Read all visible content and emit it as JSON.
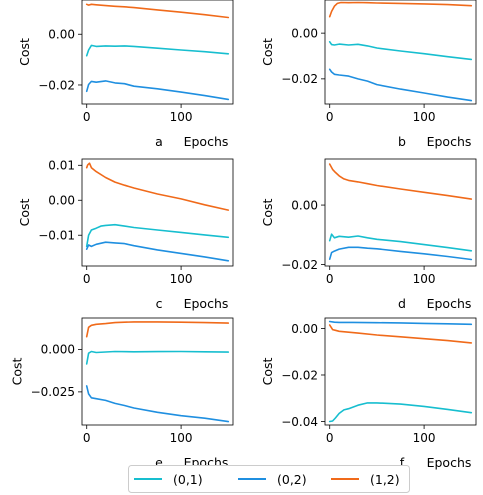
{
  "colors": {
    "s01": "#17becf",
    "s02": "#1f8fe0",
    "s12": "#f06a1a"
  },
  "legend": {
    "placement": "bottom-center",
    "entries": [
      "(0,1)",
      "(0,2)",
      "(1,2)"
    ]
  },
  "chart_data": [
    {
      "type": "line",
      "panel_label": "a",
      "xlabel": "Epochs",
      "ylabel": "Cost",
      "xlim": [
        -5,
        155
      ],
      "ylim": [
        -0.0275,
        0.0135
      ],
      "xticks": [
        0,
        100
      ],
      "yticks": [
        -0.02,
        0.0
      ],
      "ytick_labels": [
        "−0.02",
        "0.00"
      ],
      "series": [
        {
          "name": "(0,1)",
          "color_key": "s01",
          "x": [
            0,
            2,
            5,
            10,
            20,
            30,
            40,
            50,
            75,
            100,
            125,
            150
          ],
          "y": [
            -0.0085,
            -0.0062,
            -0.0044,
            -0.0048,
            -0.0046,
            -0.0047,
            -0.0046,
            -0.0048,
            -0.0055,
            -0.0062,
            -0.0069,
            -0.0077
          ]
        },
        {
          "name": "(0,2)",
          "color_key": "s02",
          "x": [
            0,
            2,
            5,
            10,
            20,
            30,
            40,
            50,
            75,
            100,
            125,
            150
          ],
          "y": [
            -0.0225,
            -0.0198,
            -0.0186,
            -0.0189,
            -0.0184,
            -0.0192,
            -0.0195,
            -0.0205,
            -0.0215,
            -0.0228,
            -0.0242,
            -0.0257
          ]
        },
        {
          "name": "(1,2)",
          "color_key": "s12",
          "x": [
            0,
            2,
            5,
            10,
            20,
            30,
            40,
            50,
            75,
            100,
            125,
            150
          ],
          "y": [
            0.0118,
            0.0115,
            0.0118,
            0.0116,
            0.0113,
            0.011,
            0.0108,
            0.0105,
            0.0096,
            0.0087,
            0.0077,
            0.0066
          ]
        }
      ]
    },
    {
      "type": "line",
      "panel_label": "b",
      "xlabel": "Epochs",
      "ylabel": "Cost",
      "xlim": [
        -5,
        155
      ],
      "ylim": [
        -0.031,
        0.0145
      ],
      "xticks": [
        0,
        100
      ],
      "yticks": [
        -0.02,
        0.0
      ],
      "ytick_labels": [
        "−0.02",
        "0.00"
      ],
      "series": [
        {
          "name": "(0,1)",
          "color_key": "s01",
          "x": [
            0,
            2,
            5,
            10,
            20,
            30,
            40,
            50,
            75,
            100,
            125,
            150
          ],
          "y": [
            -0.0038,
            -0.005,
            -0.0052,
            -0.0048,
            -0.0052,
            -0.0049,
            -0.0056,
            -0.0065,
            -0.0078,
            -0.009,
            -0.0103,
            -0.0115
          ]
        },
        {
          "name": "(0,2)",
          "color_key": "s02",
          "x": [
            0,
            2,
            5,
            10,
            20,
            30,
            40,
            50,
            75,
            100,
            125,
            150
          ],
          "y": [
            -0.0158,
            -0.017,
            -0.018,
            -0.0183,
            -0.0188,
            -0.02,
            -0.021,
            -0.0225,
            -0.0245,
            -0.0262,
            -0.028,
            -0.0295
          ]
        },
        {
          "name": "(1,2)",
          "color_key": "s12",
          "x": [
            0,
            2,
            5,
            8,
            12,
            20,
            30,
            40,
            50,
            75,
            100,
            125,
            150
          ],
          "y": [
            0.0072,
            0.0095,
            0.0118,
            0.013,
            0.0134,
            0.0133,
            0.0134,
            0.0133,
            0.0132,
            0.013,
            0.0128,
            0.0125,
            0.012
          ]
        }
      ]
    },
    {
      "type": "line",
      "panel_label": "c",
      "xlabel": "Epochs",
      "ylabel": "Cost",
      "xlim": [
        -5,
        155
      ],
      "ylim": [
        -0.0188,
        0.0118
      ],
      "xticks": [
        0,
        100
      ],
      "yticks": [
        -0.01,
        0.0,
        0.01
      ],
      "ytick_labels": [
        "−0.01",
        "0.00",
        "0.01"
      ],
      "series": [
        {
          "name": "(0,1)",
          "color_key": "s01",
          "x": [
            0,
            2,
            5,
            10,
            15,
            20,
            30,
            40,
            50,
            75,
            100,
            125,
            150
          ],
          "y": [
            -0.0132,
            -0.01,
            -0.0085,
            -0.008,
            -0.0074,
            -0.0072,
            -0.007,
            -0.0074,
            -0.0078,
            -0.0085,
            -0.0092,
            -0.0099,
            -0.0106
          ]
        },
        {
          "name": "(0,2)",
          "color_key": "s02",
          "x": [
            0,
            2,
            5,
            10,
            20,
            30,
            40,
            50,
            75,
            100,
            125,
            150
          ],
          "y": [
            -0.014,
            -0.0128,
            -0.0132,
            -0.0126,
            -0.012,
            -0.0122,
            -0.0124,
            -0.013,
            -0.0142,
            -0.0152,
            -0.0162,
            -0.0173
          ]
        },
        {
          "name": "(1,2)",
          "color_key": "s12",
          "x": [
            0,
            1,
            3,
            5,
            10,
            20,
            30,
            40,
            50,
            75,
            100,
            125,
            150
          ],
          "y": [
            0.0093,
            0.0101,
            0.0106,
            0.0093,
            0.0082,
            0.0065,
            0.0052,
            0.0043,
            0.0035,
            0.0018,
            0.0004,
            -0.0013,
            -0.0028
          ]
        }
      ]
    },
    {
      "type": "line",
      "panel_label": "d",
      "xlabel": "Epochs",
      "ylabel": "Cost",
      "xlim": [
        -5,
        155
      ],
      "ylim": [
        -0.0205,
        0.0155
      ],
      "xticks": [
        0,
        100
      ],
      "yticks": [
        -0.02,
        0.0
      ],
      "ytick_labels": [
        "−0.02",
        "0.00"
      ],
      "series": [
        {
          "name": "(0,1)",
          "color_key": "s01",
          "x": [
            0,
            2,
            5,
            10,
            20,
            30,
            40,
            50,
            75,
            100,
            125,
            150
          ],
          "y": [
            -0.012,
            -0.0098,
            -0.011,
            -0.0105,
            -0.0108,
            -0.0104,
            -0.011,
            -0.0115,
            -0.0123,
            -0.0133,
            -0.0143,
            -0.0154
          ]
        },
        {
          "name": "(0,2)",
          "color_key": "s02",
          "x": [
            0,
            2,
            5,
            10,
            20,
            30,
            40,
            50,
            75,
            100,
            125,
            150
          ],
          "y": [
            -0.0182,
            -0.016,
            -0.0155,
            -0.0148,
            -0.0142,
            -0.0142,
            -0.0145,
            -0.0147,
            -0.0156,
            -0.0164,
            -0.0173,
            -0.0183
          ]
        },
        {
          "name": "(1,2)",
          "color_key": "s12",
          "x": [
            0,
            3,
            6,
            10,
            15,
            20,
            30,
            40,
            50,
            75,
            100,
            125,
            150
          ],
          "y": [
            0.0138,
            0.012,
            0.011,
            0.0098,
            0.0088,
            0.0083,
            0.0078,
            0.0072,
            0.0066,
            0.0054,
            0.0043,
            0.0032,
            0.002
          ]
        }
      ]
    },
    {
      "type": "line",
      "panel_label": "e",
      "xlabel": "Epochs",
      "ylabel": "Cost",
      "xlim": [
        -5,
        155
      ],
      "ylim": [
        -0.0445,
        0.0185
      ],
      "xticks": [
        0,
        100
      ],
      "yticks": [
        -0.025,
        0.0
      ],
      "ytick_labels": [
        "−0.025",
        "0.000"
      ],
      "series": [
        {
          "name": "(0,1)",
          "color_key": "s01",
          "x": [
            0,
            2,
            5,
            10,
            20,
            30,
            50,
            75,
            100,
            125,
            150
          ],
          "y": [
            -0.0085,
            -0.0022,
            -0.0012,
            -0.0018,
            -0.0015,
            -0.0012,
            -0.0014,
            -0.0013,
            -0.0012,
            -0.0014,
            -0.0016
          ]
        },
        {
          "name": "(0,2)",
          "color_key": "s02",
          "x": [
            0,
            2,
            5,
            10,
            20,
            30,
            40,
            50,
            75,
            100,
            125,
            150
          ],
          "y": [
            -0.0215,
            -0.0262,
            -0.0285,
            -0.029,
            -0.03,
            -0.0318,
            -0.033,
            -0.0345,
            -0.037,
            -0.039,
            -0.0405,
            -0.0425
          ]
        },
        {
          "name": "(1,2)",
          "color_key": "s12",
          "x": [
            0,
            2,
            5,
            10,
            20,
            30,
            40,
            50,
            75,
            100,
            125,
            150
          ],
          "y": [
            0.0075,
            0.013,
            0.0142,
            0.0148,
            0.0152,
            0.0158,
            0.016,
            0.0162,
            0.0162,
            0.016,
            0.0158,
            0.0155
          ]
        }
      ]
    },
    {
      "type": "line",
      "panel_label": "f",
      "xlabel": "Epochs",
      "ylabel": "Cost",
      "xlim": [
        -5,
        155
      ],
      "ylim": [
        -0.0415,
        0.0045
      ],
      "xticks": [
        0,
        100
      ],
      "yticks": [
        -0.04,
        -0.02,
        0.0
      ],
      "ytick_labels": [
        "−0.04",
        "−0.02",
        "0.00"
      ],
      "series": [
        {
          "name": "(0,1)",
          "color_key": "s01",
          "x": [
            0,
            3,
            6,
            10,
            15,
            20,
            30,
            40,
            50,
            75,
            100,
            125,
            150
          ],
          "y": [
            -0.04,
            -0.0398,
            -0.0385,
            -0.0365,
            -0.035,
            -0.0345,
            -0.033,
            -0.032,
            -0.032,
            -0.0325,
            -0.0335,
            -0.0348,
            -0.0362
          ]
        },
        {
          "name": "(0,2)",
          "color_key": "s02",
          "x": [
            0,
            5,
            10,
            25,
            50,
            75,
            100,
            125,
            150
          ],
          "y": [
            0.003,
            0.0027,
            0.0026,
            0.0026,
            0.0025,
            0.0024,
            0.0022,
            0.002,
            0.0018
          ]
        },
        {
          "name": "(1,2)",
          "color_key": "s12",
          "x": [
            0,
            3,
            6,
            10,
            20,
            30,
            50,
            75,
            100,
            125,
            150
          ],
          "y": [
            0.0015,
            -0.0005,
            -0.0008,
            -0.0012,
            -0.0016,
            -0.002,
            -0.0028,
            -0.0036,
            -0.0044,
            -0.0052,
            -0.0062
          ]
        }
      ]
    }
  ]
}
